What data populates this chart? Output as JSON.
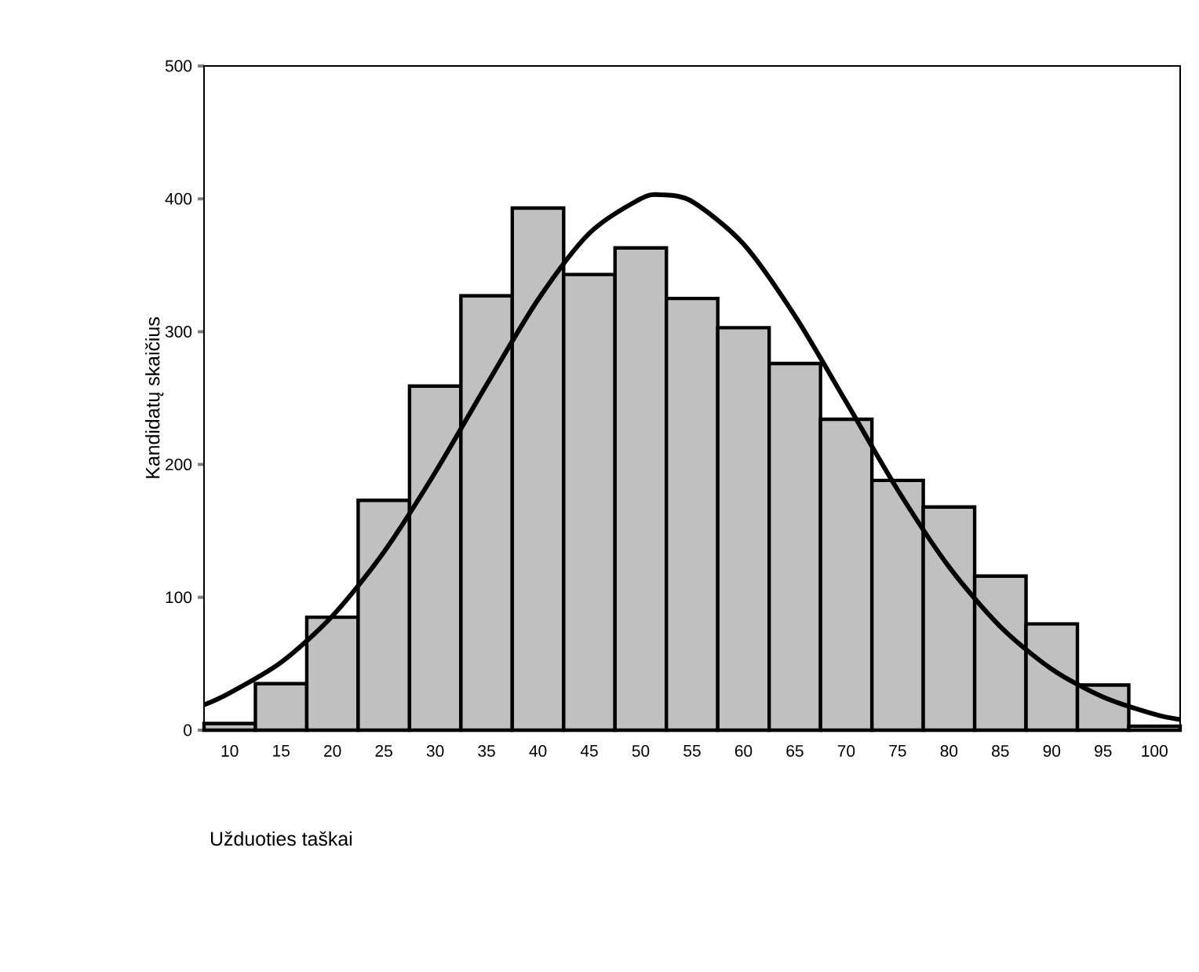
{
  "chart_data": {
    "type": "histogram",
    "xlabel": "Užduoties taškai",
    "ylabel": "Kandidatų skaičius",
    "xlim": [
      7.5,
      102.5
    ],
    "ylim": [
      0,
      500
    ],
    "xticks": [
      10,
      15,
      20,
      25,
      30,
      35,
      40,
      45,
      50,
      55,
      60,
      65,
      70,
      75,
      80,
      85,
      90,
      95,
      100
    ],
    "yticks": [
      0,
      100,
      200,
      300,
      400,
      500
    ],
    "grid": false,
    "marker": "none",
    "series": [
      {
        "color": "#c0c0c0",
        "bins": [
          7.5,
          12.5,
          17.5,
          22.5,
          27.5,
          32.5,
          37.5,
          42.5,
          47.5,
          52.5,
          57.5,
          62.5,
          67.5,
          72.5,
          77.5,
          82.5,
          87.5,
          92.5,
          97.5,
          102.5
        ],
        "values": [
          5,
          35,
          85,
          173,
          259,
          327,
          393,
          343,
          363,
          325,
          303,
          276,
          234,
          188,
          168,
          116,
          80,
          34,
          3
        ]
      },
      {
        "type": "line",
        "color": "#000000",
        "line_style": "solid",
        "x": [
          7.5,
          10,
          15,
          20,
          25,
          30,
          35,
          40,
          45,
          50,
          52,
          55,
          60,
          65,
          70,
          75,
          80,
          85,
          90,
          95,
          100,
          102.5
        ],
        "values": [
          19,
          28,
          51,
          86,
          134,
          194,
          260,
          324,
          374,
          400,
          403,
          398,
          366,
          312,
          247,
          181,
          123,
          78,
          46,
          25,
          12,
          8
        ]
      }
    ]
  }
}
